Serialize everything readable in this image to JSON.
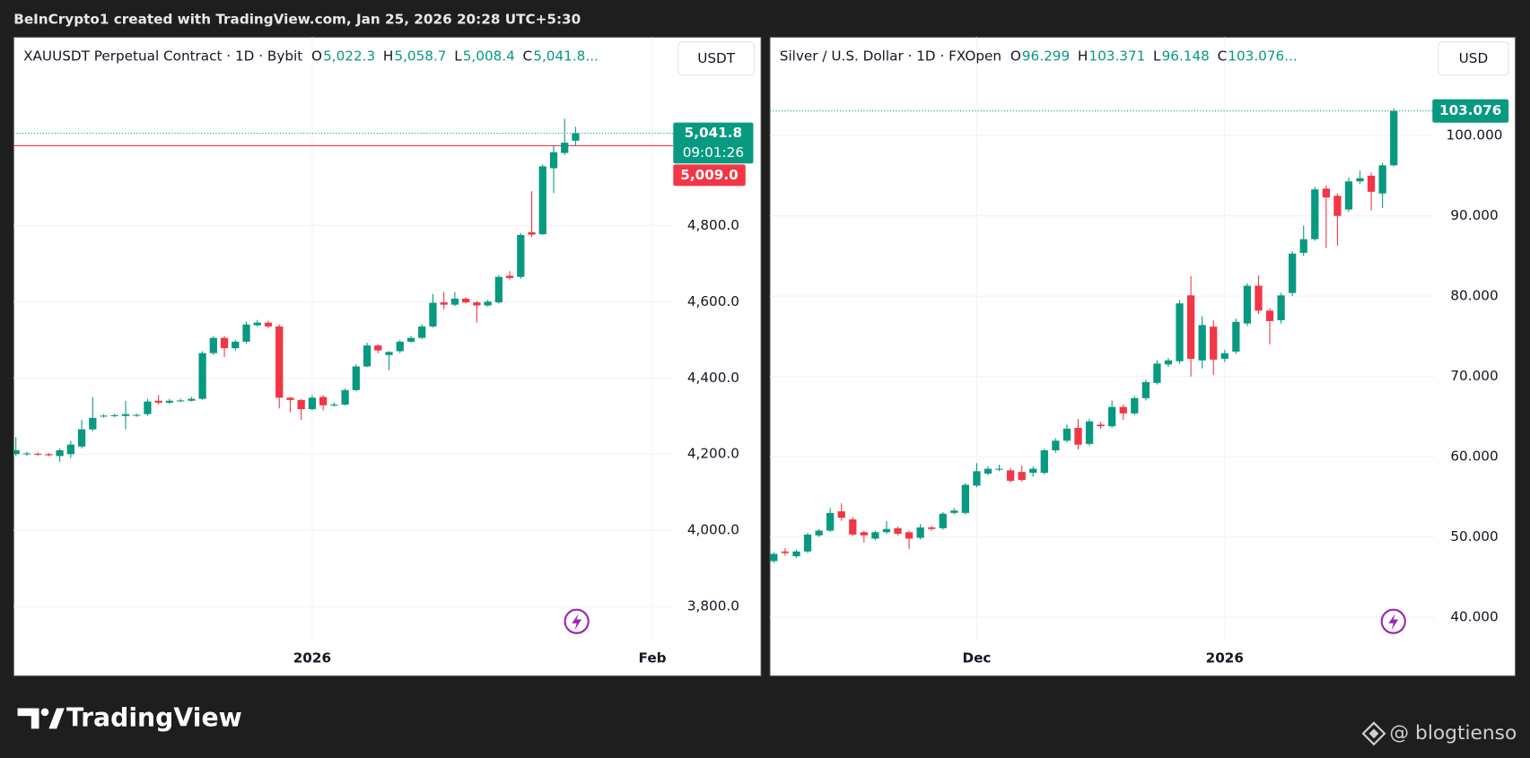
{
  "header": {
    "text": "BeInCrypto1 created with TradingView.com, Jan 25, 2026 20:28 UTC+5:30"
  },
  "chart_data": [
    {
      "type": "candlestick",
      "symbol": "XAUUSDT Perpetual Contract · 1D · Bybit",
      "legend": [
        {
          "key": "O",
          "value": "5,022.3"
        },
        {
          "key": "H",
          "value": "5,058.7"
        },
        {
          "key": "L",
          "value": "5,008.4"
        },
        {
          "key": "C",
          "value": "5,041.8..."
        }
      ],
      "currency": "USDT",
      "up_color": "#089981",
      "down_color": "#f23645",
      "open": [
        4200,
        4200,
        4201,
        4200,
        4195,
        4200,
        4220,
        4265,
        4300,
        4300,
        4300,
        4302,
        4305,
        4340,
        4335,
        4340,
        4340,
        4345,
        4465,
        4505,
        4478,
        4495,
        4538,
        4545,
        4535,
        4348,
        4342,
        4318,
        4350,
        4328,
        4330,
        4368,
        4430,
        4485,
        4460,
        4470,
        4495,
        4505,
        4535,
        4598,
        4592,
        4608,
        4598,
        4590,
        4598,
        4668,
        4665,
        4782,
        4777,
        4950,
        4990,
        5022.3
      ],
      "high": [
        4245,
        4206,
        4205,
        4203,
        4215,
        4235,
        4290,
        4350,
        4305,
        4306,
        4340,
        4306,
        4345,
        4355,
        4345,
        4345,
        4350,
        4470,
        4510,
        4510,
        4500,
        4548,
        4552,
        4550,
        4540,
        4350,
        4345,
        4355,
        4355,
        4335,
        4372,
        4435,
        4492,
        4488,
        4470,
        4500,
        4510,
        4540,
        4620,
        4625,
        4625,
        4612,
        4602,
        4605,
        4670,
        4680,
        4780,
        4890,
        4960,
        5010,
        5080,
        5058.7
      ],
      "low": [
        4195,
        4196,
        4196,
        4194,
        4180,
        4190,
        4215,
        4260,
        4296,
        4297,
        4265,
        4298,
        4300,
        4330,
        4332,
        4336,
        4338,
        4342,
        4460,
        4455,
        4472,
        4490,
        4535,
        4530,
        4320,
        4310,
        4290,
        4315,
        4315,
        4325,
        4328,
        4365,
        4428,
        4465,
        4420,
        4465,
        4492,
        4502,
        4532,
        4580,
        4588,
        4595,
        4545,
        4587,
        4595,
        4658,
        4660,
        4770,
        4775,
        4885,
        4985,
        5008.4
      ],
      "close": [
        4210,
        4202,
        4200,
        4197,
        4210,
        4225,
        4265,
        4295,
        4301,
        4302,
        4305,
        4303,
        4338,
        4335,
        4340,
        4341,
        4345,
        4465,
        4505,
        4478,
        4495,
        4540,
        4545,
        4535,
        4348,
        4342,
        4318,
        4348,
        4328,
        4330,
        4368,
        4430,
        4485,
        4472,
        4468,
        4495,
        4505,
        4535,
        4597,
        4592,
        4608,
        4598,
        4590,
        4600,
        4665,
        4662,
        4775,
        4776,
        4955,
        4992,
        5017,
        5041.8
      ],
      "xlim": [
        -0.2,
        59.9
      ],
      "xticks": [
        {
          "value": 27,
          "label": "2026"
        },
        {
          "value": 58,
          "label": "Feb"
        }
      ],
      "ylim": [
        3710,
        5294
      ],
      "yticks": [
        {
          "value": 3800,
          "label": "3,800.0"
        },
        {
          "value": 4000,
          "label": "4,000.0"
        },
        {
          "value": 4200,
          "label": "4,200.0"
        },
        {
          "value": 4400,
          "label": "4,400.0"
        },
        {
          "value": 4600,
          "label": "4,600.0"
        },
        {
          "value": 4800,
          "label": "4,800.0"
        }
      ],
      "grid": true,
      "last_price": {
        "value": 5041.8,
        "label": "5,041.8"
      },
      "countdown": "09:01:26",
      "alert_line": {
        "value": 5009.0,
        "label": "5,009.0"
      }
    },
    {
      "type": "candlestick",
      "symbol": "Silver / U.S. Dollar · 1D · FXOpen",
      "legend": [
        {
          "key": "O",
          "value": "96.299"
        },
        {
          "key": "H",
          "value": "103.371"
        },
        {
          "key": "L",
          "value": "96.148"
        },
        {
          "key": "C",
          "value": "103.076..."
        }
      ],
      "currency": "USD",
      "up_color": "#089981",
      "down_color": "#f23645",
      "open": [
        47.0,
        48.2,
        47.6,
        48.2,
        50.2,
        50.8,
        53.2,
        52.2,
        50.6,
        49.8,
        50.6,
        51.1,
        50.6,
        49.9,
        51.2,
        51.1,
        53.0,
        53.0,
        56.4,
        57.9,
        58.4,
        58.3,
        58.1,
        58.0,
        58.0,
        60.8,
        62.0,
        63.6,
        61.6,
        64.0,
        63.8,
        66.2,
        65.4,
        67.3,
        69.2,
        71.5,
        71.9,
        80.1,
        72.0,
        76.2,
        72.2,
        73.1,
        76.6,
        81.3,
        78.2,
        77.0,
        80.4,
        85.4,
        87.1,
        93.4,
        92.5,
        90.8,
        94.3,
        95.0,
        92.8,
        96.299
      ],
      "high": [
        48.1,
        48.6,
        48.4,
        50.5,
        51.0,
        53.6,
        54.2,
        52.5,
        50.8,
        50.8,
        52.0,
        51.3,
        50.8,
        51.6,
        51.4,
        53.1,
        53.6,
        56.7,
        59.2,
        58.8,
        59.0,
        58.6,
        58.9,
        58.8,
        61.0,
        62.3,
        64.0,
        64.7,
        64.7,
        64.3,
        67.0,
        66.5,
        67.6,
        69.6,
        72.0,
        72.3,
        79.5,
        82.5,
        77.5,
        77.0,
        73.3,
        77.2,
        81.6,
        82.6,
        78.5,
        80.4,
        85.6,
        88.8,
        93.6,
        93.8,
        92.8,
        94.8,
        95.6,
        95.4,
        96.6,
        103.371
      ],
      "low": [
        46.8,
        47.7,
        47.4,
        48.0,
        50.0,
        50.6,
        52.0,
        50.1,
        49.3,
        49.6,
        50.4,
        50.2,
        48.5,
        49.7,
        50.8,
        50.9,
        52.8,
        52.8,
        56.2,
        57.7,
        58.2,
        56.8,
        56.9,
        57.5,
        57.8,
        60.5,
        61.8,
        60.9,
        61.4,
        63.5,
        63.6,
        64.6,
        65.2,
        67.0,
        69.0,
        71.2,
        71.6,
        70.0,
        71.0,
        70.2,
        71.8,
        72.8,
        76.3,
        77.8,
        74.0,
        76.6,
        80.0,
        85.0,
        86.9,
        86.0,
        86.3,
        90.5,
        94.0,
        90.7,
        91.0,
        96.148
      ],
      "close": [
        47.9,
        48.0,
        48.2,
        50.3,
        50.8,
        53.0,
        52.4,
        50.3,
        50.2,
        50.6,
        51.0,
        50.4,
        49.8,
        51.2,
        51.0,
        52.9,
        53.3,
        56.5,
        58.2,
        58.5,
        58.5,
        57.0,
        57.1,
        58.5,
        60.8,
        62.0,
        63.5,
        61.5,
        64.4,
        63.8,
        66.2,
        65.4,
        67.3,
        69.3,
        71.6,
        72.0,
        79.1,
        72.2,
        76.4,
        72.1,
        72.9,
        76.8,
        81.3,
        78.2,
        76.9,
        80.1,
        85.3,
        87.1,
        93.3,
        92.3,
        90.0,
        94.3,
        94.7,
        93.0,
        96.3,
        103.076
      ],
      "xlim": [
        -0.35,
        58.6
      ],
      "xticks": [
        {
          "value": 18,
          "label": "Dec"
        },
        {
          "value": 40,
          "label": "2026"
        }
      ],
      "ylim": [
        37.06,
        112.27
      ],
      "yticks": [
        {
          "value": 40,
          "label": "40.000"
        },
        {
          "value": 50,
          "label": "50.000"
        },
        {
          "value": 60,
          "label": "60.000"
        },
        {
          "value": 70,
          "label": "70.000"
        },
        {
          "value": 80,
          "label": "80.000"
        },
        {
          "value": 90,
          "label": "90.000"
        },
        {
          "value": 100,
          "label": "100.000"
        }
      ],
      "grid": true,
      "last_price": {
        "value": 103.076,
        "label": "103.076"
      }
    }
  ],
  "footer": {
    "brand": "TradingView",
    "watermark": "@ blogtienso"
  }
}
